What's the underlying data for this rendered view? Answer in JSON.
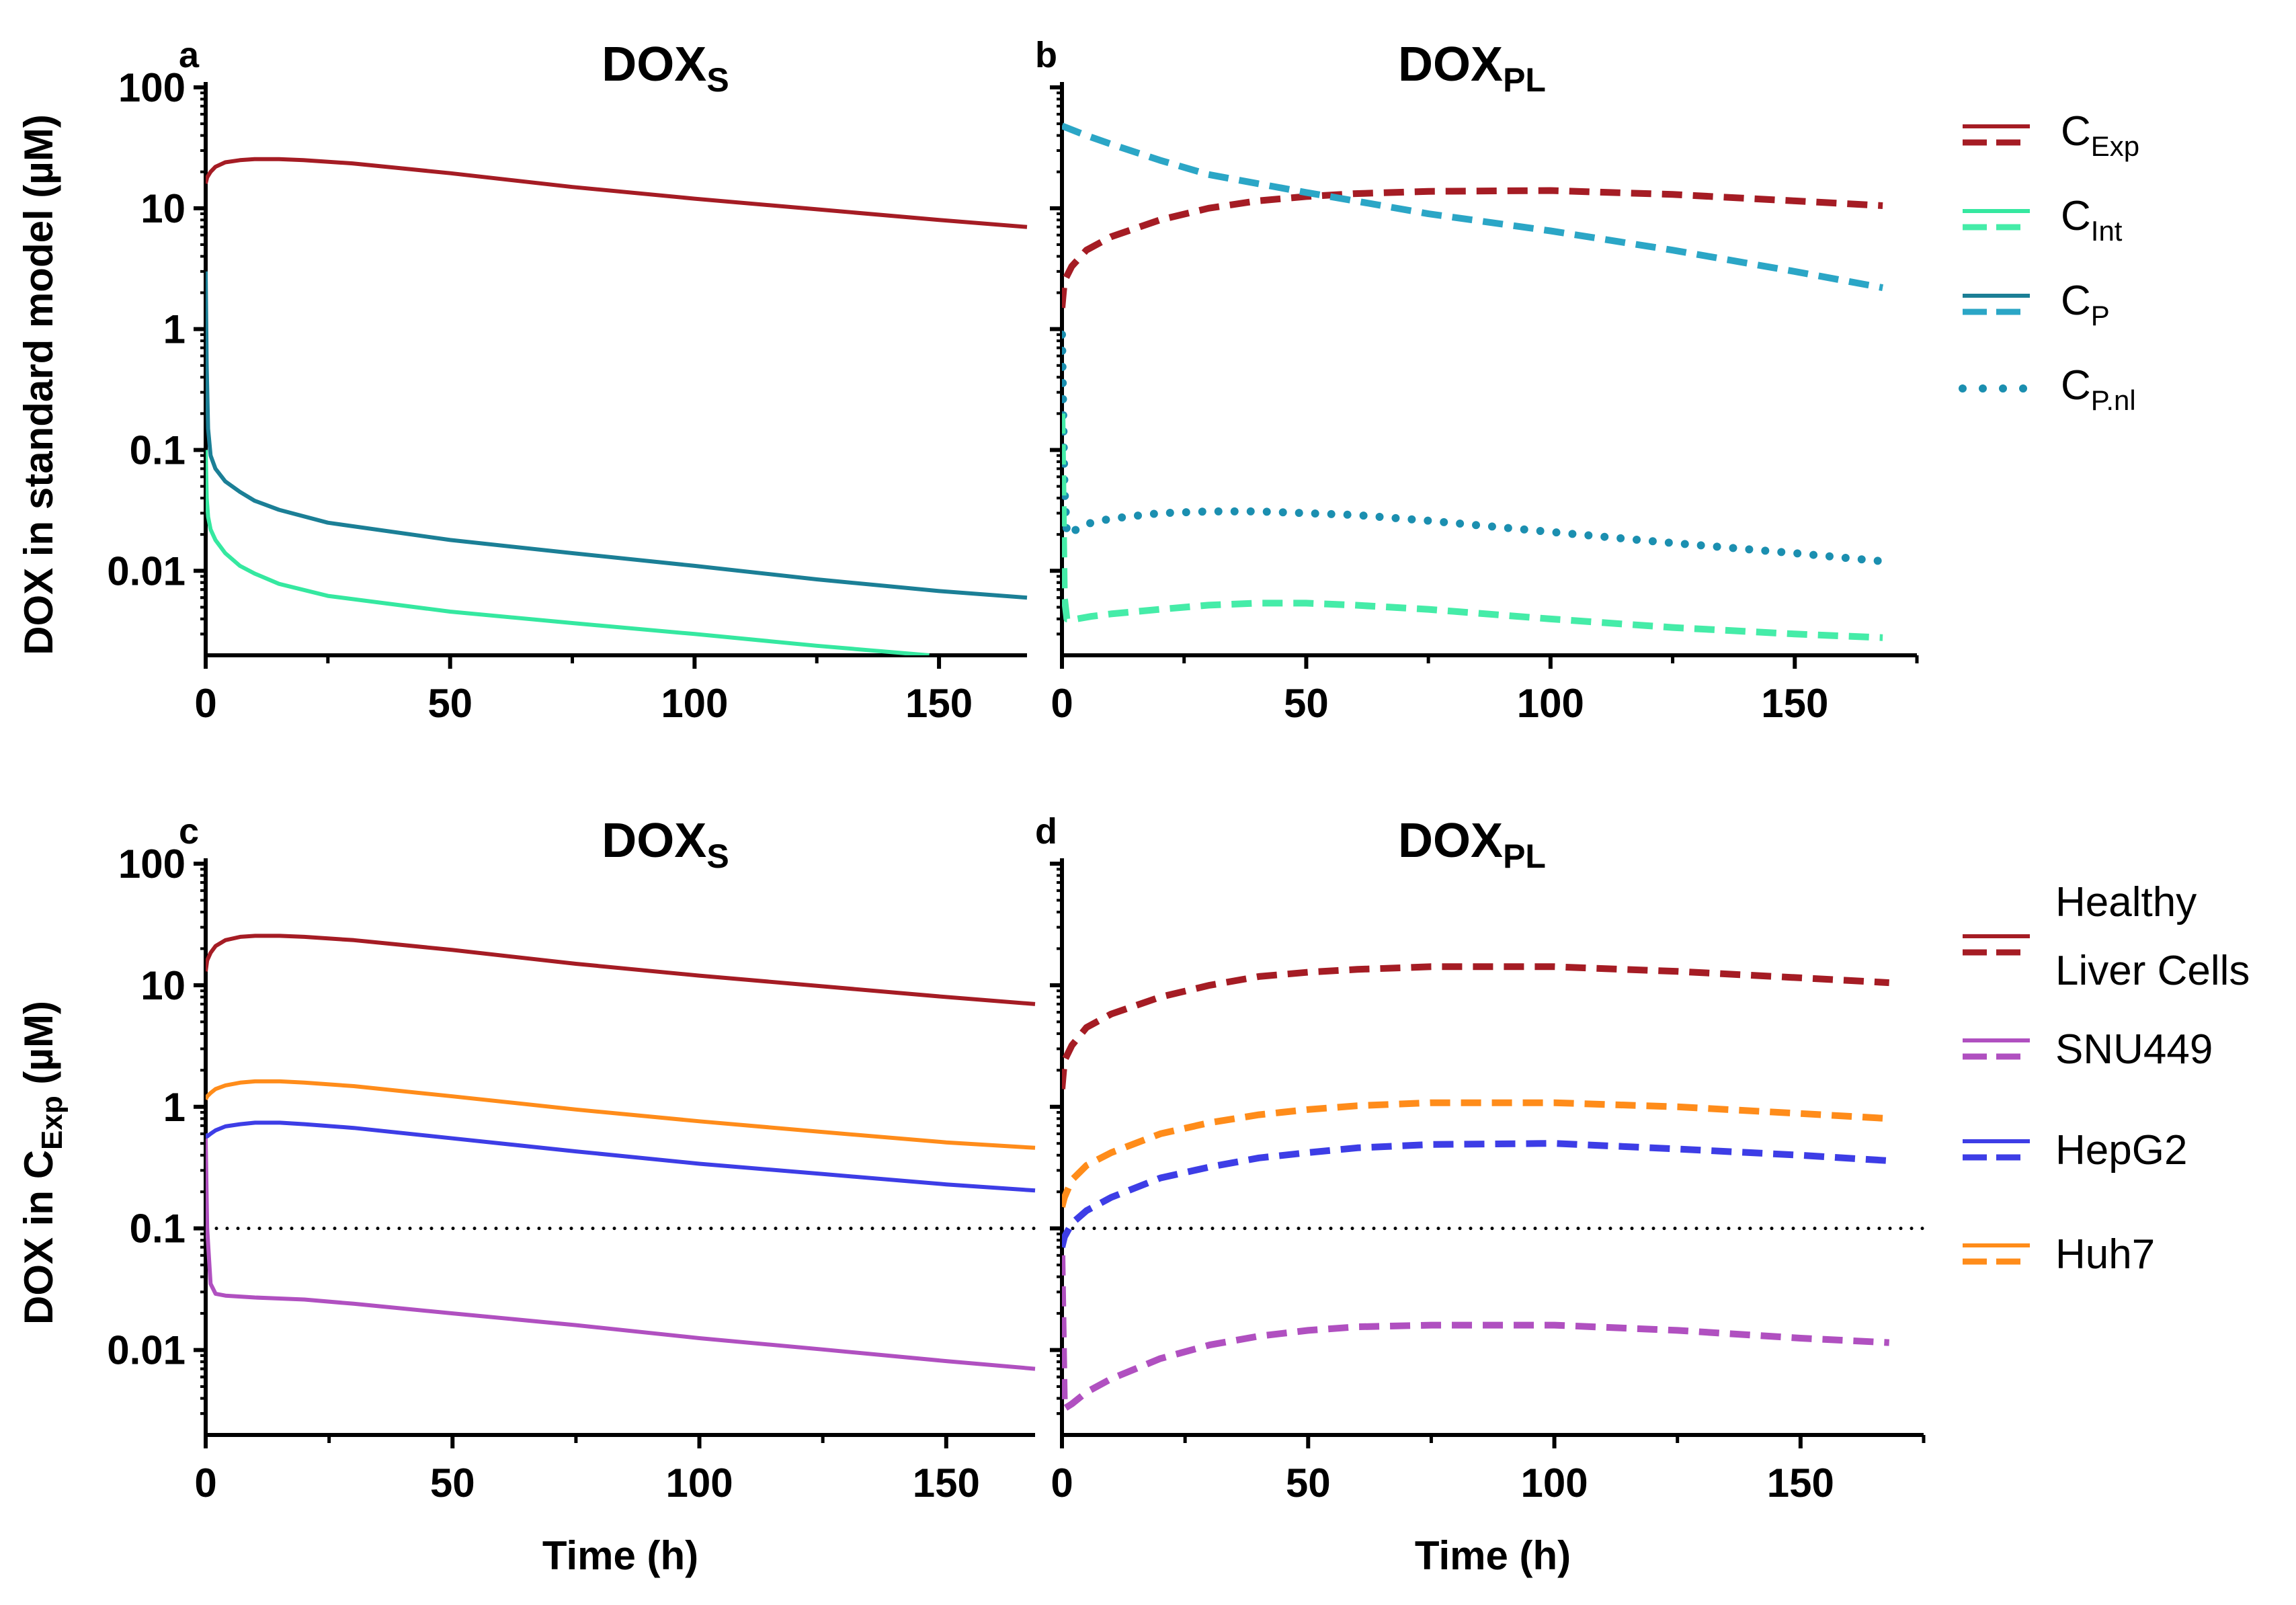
{
  "chart_data": [
    {
      "panel": "a",
      "type": "line",
      "title": "DOX",
      "title_sub": "S",
      "ylabel": "DOX in standard model (µM)",
      "ylabel_sub": "",
      "xlabel": "",
      "yscale": "log",
      "ylim": [
        0.002,
        100
      ],
      "yticks": [
        0.01,
        0.1,
        1,
        10,
        100
      ],
      "ytick_labels": [
        "0.01",
        "0.1",
        "1",
        "10",
        "100"
      ],
      "xlim": [
        0,
        168
      ],
      "xticks": [
        0,
        50,
        100,
        150
      ],
      "xtick_labels": [
        "0",
        "50",
        "100",
        "150"
      ],
      "series": [
        {
          "ref": "C_Exp",
          "color": "#A51C24",
          "dash": "solid",
          "x": [
            0,
            0.3,
            1,
            2,
            4,
            7,
            10,
            15,
            20,
            30,
            50,
            75,
            100,
            125,
            150,
            168
          ],
          "y": [
            16,
            18,
            20,
            22,
            24,
            25,
            25.5,
            25.5,
            25,
            23.5,
            19.5,
            15,
            12,
            9.8,
            8,
            7
          ]
        },
        {
          "ref": "C_P",
          "color": "#1B7F96",
          "dash": "solid",
          "x": [
            0,
            0.2,
            0.5,
            1,
            2,
            4,
            7,
            10,
            15,
            25,
            50,
            75,
            100,
            125,
            150,
            168
          ],
          "y": [
            3,
            0.5,
            0.15,
            0.09,
            0.07,
            0.055,
            0.045,
            0.038,
            0.032,
            0.025,
            0.018,
            0.014,
            0.011,
            0.0085,
            0.0068,
            0.006
          ]
        },
        {
          "ref": "C_Int",
          "color": "#35E8A0",
          "dash": "solid",
          "x": [
            0,
            0.2,
            0.5,
            1,
            2,
            4,
            7,
            10,
            15,
            25,
            50,
            75,
            100,
            125,
            148
          ],
          "y": [
            0.1,
            0.04,
            0.028,
            0.022,
            0.018,
            0.014,
            0.011,
            0.0095,
            0.0078,
            0.0062,
            0.0046,
            0.0037,
            0.003,
            0.0024,
            0.002
          ]
        }
      ]
    },
    {
      "panel": "b",
      "type": "line",
      "title": "DOX",
      "title_sub": "PL",
      "ylabel": "",
      "xlabel": "",
      "yscale": "log",
      "ylim": [
        0.002,
        100
      ],
      "yticks": [
        0.01,
        0.1,
        1,
        10,
        100
      ],
      "ytick_labels": [],
      "xlim": [
        0,
        175
      ],
      "xticks": [
        0,
        50,
        100,
        150
      ],
      "xtick_labels": [
        "0",
        "50",
        "100",
        "150"
      ],
      "series": [
        {
          "ref": "C_Exp",
          "color": "#A51C24",
          "dash": "dashed",
          "x": [
            0,
            0.5,
            2,
            5,
            10,
            20,
            30,
            40,
            50,
            60,
            75,
            100,
            125,
            150,
            168
          ],
          "y": [
            1.5,
            2.5,
            3.3,
            4.5,
            5.8,
            8,
            10,
            11.5,
            12.5,
            13.2,
            13.8,
            14,
            13,
            11.5,
            10.5
          ]
        },
        {
          "ref": "C_P",
          "color": "#2BA6C6",
          "dash": "dashed",
          "x": [
            0,
            5,
            10,
            20,
            30,
            40,
            50,
            60,
            75,
            100,
            125,
            150,
            168
          ],
          "y": [
            48,
            40,
            34,
            25,
            19,
            16,
            13.5,
            11.5,
            9,
            6.5,
            4.5,
            3,
            2.2
          ]
        },
        {
          "ref": "C_P.nl",
          "color": "#1B8FB0",
          "dash": "dotted",
          "x": [
            0,
            0.5,
            1,
            3,
            6,
            10,
            20,
            30,
            40,
            50,
            60,
            75,
            100,
            125,
            150,
            168
          ],
          "y": [
            0.9,
            0.05,
            0.02,
            0.022,
            0.025,
            0.027,
            0.03,
            0.031,
            0.031,
            0.03,
            0.029,
            0.026,
            0.021,
            0.017,
            0.014,
            0.012
          ]
        },
        {
          "ref": "C_Int",
          "color": "#45ECA8",
          "dash": "dashed",
          "x": [
            0,
            0.5,
            1,
            3,
            6,
            10,
            20,
            30,
            40,
            50,
            60,
            75,
            100,
            125,
            150,
            168
          ],
          "y": [
            0.2,
            0.006,
            0.004,
            0.004,
            0.0042,
            0.0044,
            0.0048,
            0.0052,
            0.0054,
            0.0054,
            0.0052,
            0.0048,
            0.004,
            0.0034,
            0.003,
            0.0028
          ]
        }
      ]
    },
    {
      "panel": "c",
      "type": "line",
      "title": "DOX",
      "title_sub": "S",
      "ylabel": "DOX in C",
      "ylabel_sub": "Exp",
      "ylabel_suffix": " (µM)",
      "xlabel": "Time (h)",
      "yscale": "log",
      "ylim": [
        0.002,
        100
      ],
      "yticks": [
        0.01,
        0.1,
        1,
        10,
        100
      ],
      "ytick_labels": [
        "0.01",
        "0.1",
        "1",
        "10",
        "100"
      ],
      "xlim": [
        0,
        168
      ],
      "xticks": [
        0,
        50,
        100,
        150
      ],
      "xtick_labels": [
        "0",
        "50",
        "100",
        "150"
      ],
      "reference_line": 0.1,
      "series": [
        {
          "ref": "Healthy Liver Cells",
          "color": "#A51C24",
          "dash": "solid",
          "x": [
            0,
            0.3,
            1,
            2,
            4,
            7,
            10,
            15,
            20,
            30,
            50,
            75,
            100,
            125,
            150,
            168
          ],
          "y": [
            13,
            16,
            18.5,
            21,
            23.5,
            25,
            25.5,
            25.5,
            25,
            23.5,
            19.5,
            15,
            12,
            9.8,
            8,
            7
          ]
        },
        {
          "ref": "Huh7",
          "color": "#FF8C1A",
          "dash": "solid",
          "x": [
            0,
            0.3,
            1,
            2,
            4,
            7,
            10,
            15,
            20,
            30,
            50,
            75,
            100,
            125,
            150,
            168
          ],
          "y": [
            1.15,
            1.22,
            1.3,
            1.4,
            1.5,
            1.58,
            1.62,
            1.62,
            1.58,
            1.48,
            1.22,
            0.95,
            0.76,
            0.62,
            0.51,
            0.46
          ]
        },
        {
          "ref": "HepG2",
          "color": "#3D3DE6",
          "dash": "solid",
          "x": [
            0,
            0.3,
            1,
            2,
            4,
            7,
            10,
            15,
            20,
            30,
            50,
            75,
            100,
            125,
            150,
            168
          ],
          "y": [
            0.6,
            0.57,
            0.6,
            0.64,
            0.69,
            0.72,
            0.74,
            0.74,
            0.72,
            0.67,
            0.55,
            0.43,
            0.34,
            0.28,
            0.23,
            0.205
          ]
        },
        {
          "ref": "SNU449",
          "color": "#B050C0",
          "dash": "solid",
          "x": [
            0,
            0.3,
            1,
            2,
            4,
            7,
            10,
            15,
            20,
            30,
            50,
            75,
            100,
            125,
            150,
            168
          ],
          "y": [
            0.55,
            0.1,
            0.035,
            0.029,
            0.028,
            0.0275,
            0.027,
            0.0265,
            0.026,
            0.024,
            0.02,
            0.016,
            0.0125,
            0.0101,
            0.0081,
            0.007
          ]
        }
      ]
    },
    {
      "panel": "d",
      "type": "line",
      "title": "DOX",
      "title_sub": "PL",
      "ylabel": "",
      "xlabel": "Time (h)",
      "yscale": "log",
      "ylim": [
        0.002,
        100
      ],
      "yticks": [
        0.01,
        0.1,
        1,
        10,
        100
      ],
      "ytick_labels": [],
      "xlim": [
        0,
        175
      ],
      "xticks": [
        0,
        50,
        100,
        150
      ],
      "xtick_labels": [
        "0",
        "50",
        "100",
        "150"
      ],
      "reference_line": 0.1,
      "series": [
        {
          "ref": "Healthy Liver Cells",
          "color": "#A51C24",
          "dash": "dashed",
          "x": [
            0,
            0.5,
            2,
            5,
            10,
            20,
            30,
            40,
            50,
            60,
            75,
            100,
            125,
            150,
            168
          ],
          "y": [
            1.4,
            2.4,
            3.2,
            4.5,
            5.8,
            8,
            10,
            11.8,
            12.8,
            13.5,
            14.2,
            14.2,
            13,
            11.5,
            10.5
          ]
        },
        {
          "ref": "Huh7",
          "color": "#FF8C1A",
          "dash": "dashed",
          "x": [
            0,
            0.5,
            2,
            5,
            10,
            20,
            30,
            40,
            50,
            60,
            75,
            100,
            125,
            150,
            168
          ],
          "y": [
            0.15,
            0.18,
            0.25,
            0.33,
            0.42,
            0.6,
            0.74,
            0.86,
            0.95,
            1.02,
            1.08,
            1.08,
            1.0,
            0.88,
            0.8
          ]
        },
        {
          "ref": "HepG2",
          "color": "#3D3DE6",
          "dash": "dashed",
          "x": [
            0,
            0.5,
            2,
            5,
            10,
            20,
            30,
            40,
            50,
            60,
            75,
            100,
            125,
            150,
            168
          ],
          "y": [
            0.07,
            0.085,
            0.11,
            0.14,
            0.18,
            0.26,
            0.32,
            0.38,
            0.42,
            0.46,
            0.49,
            0.5,
            0.45,
            0.4,
            0.36
          ]
        },
        {
          "ref": "SNU449",
          "color": "#B050C0",
          "dash": "dashed",
          "x": [
            0,
            0.5,
            2,
            5,
            10,
            20,
            30,
            40,
            50,
            60,
            75,
            100,
            125,
            150,
            168
          ],
          "y": [
            0.06,
            0.0033,
            0.0036,
            0.0045,
            0.0058,
            0.0085,
            0.011,
            0.013,
            0.0145,
            0.0155,
            0.016,
            0.016,
            0.0145,
            0.0125,
            0.0115
          ]
        }
      ]
    }
  ],
  "legend_top": [
    {
      "ref": "C_Exp",
      "label": "C",
      "sub": "Exp",
      "color": "#A51C24",
      "color2": "#A51C24",
      "style": "solid-dashed"
    },
    {
      "ref": "C_Int",
      "label": "C",
      "sub": "Int",
      "color": "#35E8A0",
      "color2": "#45ECA8",
      "style": "solid-dashed"
    },
    {
      "ref": "C_P",
      "label": "C",
      "sub": "P",
      "color": "#1B7F96",
      "color2": "#2BA6C6",
      "style": "solid-dashed"
    },
    {
      "ref": "C_P.nl",
      "label": "C",
      "sub": "P.nl",
      "color": "#1B8FB0",
      "color2": "#1B8FB0",
      "style": "dotted"
    }
  ],
  "legend_bottom": [
    {
      "ref": "Healthy Liver Cells",
      "label": "Healthy",
      "label2": "Liver Cells",
      "color": "#A51C24",
      "style": "solid-dashed"
    },
    {
      "ref": "SNU449",
      "label": "SNU449",
      "color": "#B050C0",
      "style": "solid-dashed"
    },
    {
      "ref": "HepG2",
      "label": "HepG2",
      "color": "#3D3DE6",
      "style": "solid-dashed"
    },
    {
      "ref": "Huh7",
      "label": "Huh7",
      "color": "#FF8C1A",
      "style": "solid-dashed"
    }
  ]
}
